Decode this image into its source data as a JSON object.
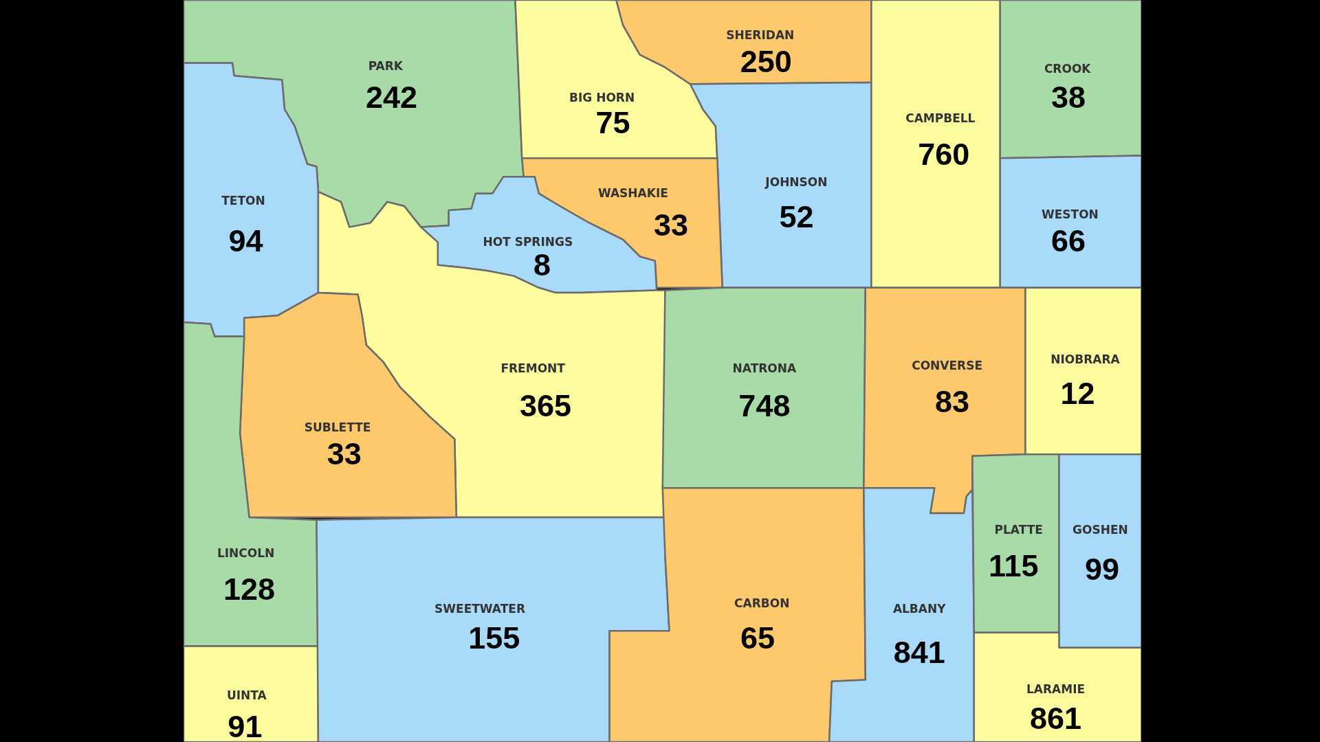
{
  "chart_data": {
    "type": "other",
    "data_labels": true,
    "categories": [
      "PARK",
      "TETON",
      "BIG HORN",
      "SHERIDAN",
      "JOHNSON",
      "CAMPBELL",
      "CROOK",
      "WESTON",
      "WASHAKIE",
      "HOT SPRINGS",
      "FREMONT",
      "SUBLETTE",
      "LINCOLN",
      "UINTA",
      "SWEETWATER",
      "NATRONA",
      "CONVERSE",
      "NIOBRARA",
      "CARBON",
      "ALBANY",
      "PLATTE",
      "GOSHEN",
      "LARAMIE"
    ],
    "values": [
      242,
      94,
      75,
      250,
      52,
      760,
      38,
      66,
      33,
      8,
      365,
      33,
      128,
      91,
      155,
      748,
      83,
      12,
      65,
      841,
      115,
      99,
      861
    ],
    "colors": [
      "#a9dba9",
      "#a9dafa",
      "#fdfc9e",
      "#fdc96c",
      "#a9dafa",
      "#fdfc9e",
      "#a9dba9",
      "#a9dafa",
      "#fdc96c",
      "#a9dafa",
      "#fdfc9e",
      "#fdc96c",
      "#a9dba9",
      "#fdfc9e",
      "#a9dafa",
      "#a9dba9",
      "#fdc96c",
      "#fdfc9e",
      "#fdc96c",
      "#a9dafa",
      "#a9dba9",
      "#a9dafa",
      "#fdfc9e"
    ]
  }
}
